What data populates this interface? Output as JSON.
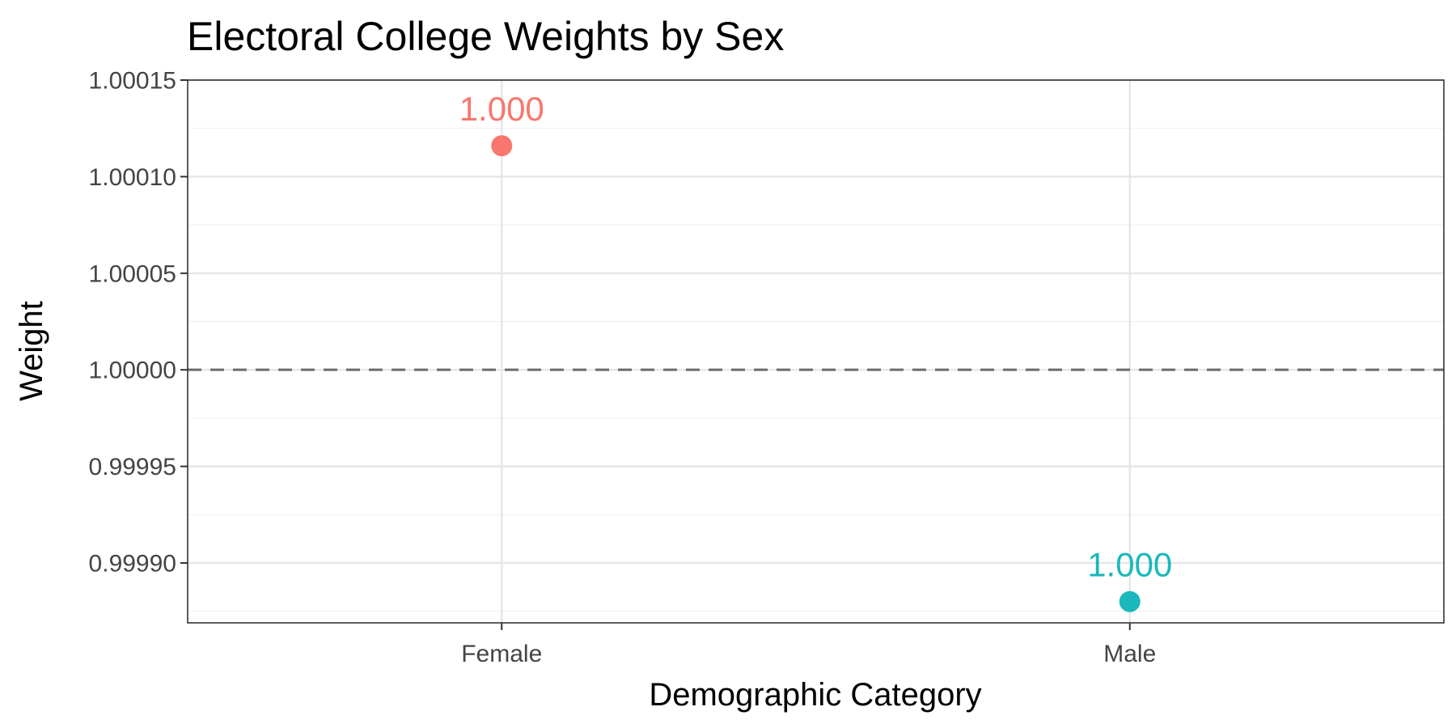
{
  "chart_data": {
    "type": "scatter",
    "title": "Electoral College Weights by Sex",
    "xlabel": "Demographic Category",
    "ylabel": "Weight",
    "categories": [
      "Female",
      "Male"
    ],
    "points": [
      {
        "category": "Female",
        "value": 1.000116,
        "label": "1.000",
        "color": "#F8766D"
      },
      {
        "category": "Male",
        "value": 0.99988,
        "label": "1.000",
        "color": "#1AB8BC"
      }
    ],
    "y_ticks": [
      {
        "value": 1.00015,
        "label": "1.00015"
      },
      {
        "value": 1.0001,
        "label": "1.00010"
      },
      {
        "value": 1.00005,
        "label": "1.00005"
      },
      {
        "value": 1.0,
        "label": "1.00000"
      },
      {
        "value": 0.99995,
        "label": "0.99995"
      },
      {
        "value": 0.9999,
        "label": "0.99990"
      }
    ],
    "ylim": [
      0.999869,
      1.00015
    ],
    "reference_line": {
      "value": 1.0,
      "style": "dashed",
      "color": "#6b6b6b"
    },
    "grid": true,
    "legend": "none",
    "colors": {
      "grid_major": "#e6e6e6",
      "grid_minor": "#f0f0f0",
      "panel_border": "#333333",
      "tick_text": "#444444"
    }
  }
}
